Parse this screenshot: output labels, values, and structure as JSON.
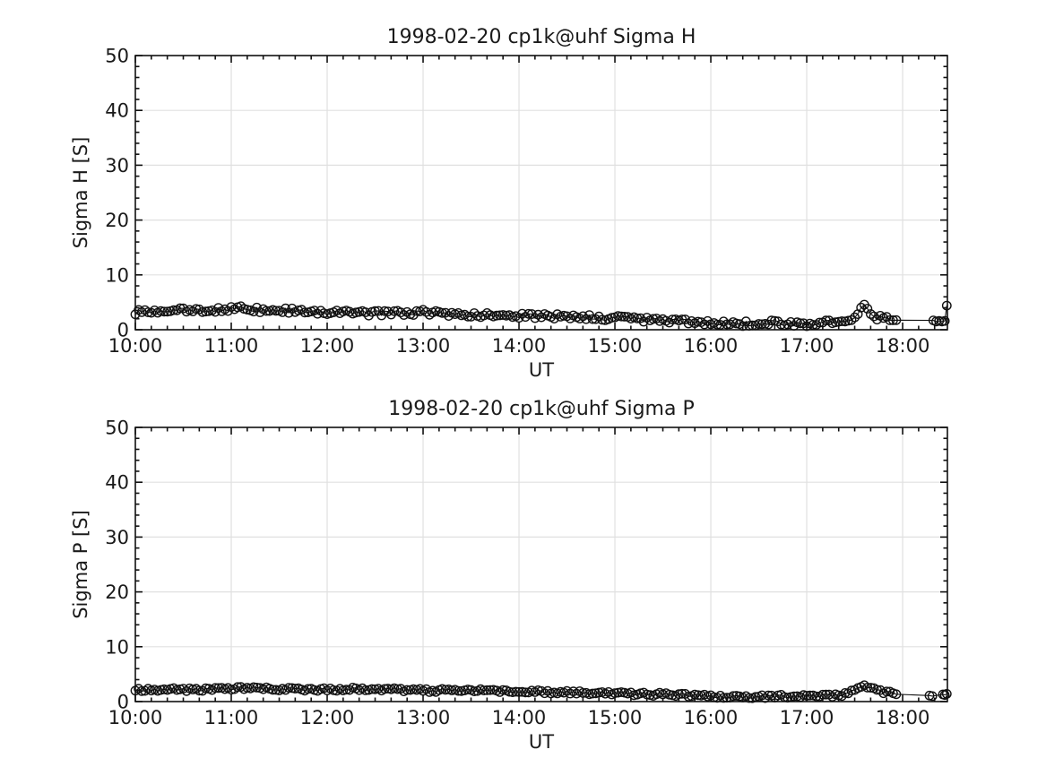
{
  "figure": {
    "background_color": "#ffffff",
    "text_color": "#1a1a1a",
    "axis_color": "#111111",
    "grid_color": "#e0e0e0"
  },
  "chart_data": [
    {
      "type": "scatter",
      "title": "1998-02-20  cp1k@uhf Sigma H",
      "xlabel": "UT",
      "ylabel": "Sigma H [S]",
      "xlim_hours": [
        10.0,
        18.4667
      ],
      "ylim": [
        0,
        50
      ],
      "xticks_hours": [
        10,
        11,
        12,
        13,
        14,
        15,
        16,
        17,
        18
      ],
      "xtick_labels": [
        "10:00",
        "11:00",
        "12:00",
        "13:00",
        "14:00",
        "15:00",
        "16:00",
        "17:00",
        "18:00"
      ],
      "yticks": [
        0,
        10,
        20,
        30,
        40,
        50
      ],
      "x_minor_step_min": 10,
      "y_minor_step": 2,
      "grid": true,
      "legend": "none",
      "marker": "open-circle",
      "line_style": "solid",
      "series_color": "#111111",
      "sample_interval_min": 2,
      "regular_end_hour": 17.95,
      "gap_hours": [
        17.95,
        18.32
      ],
      "noise_amp": 0.45,
      "noise_seed": 7,
      "trend_anchors_hour_value": [
        [
          10.0,
          3.2
        ],
        [
          10.3,
          3.5
        ],
        [
          10.7,
          3.6
        ],
        [
          11.1,
          3.9
        ],
        [
          11.3,
          3.6
        ],
        [
          11.7,
          3.4
        ],
        [
          12.0,
          3.3
        ],
        [
          12.4,
          3.0
        ],
        [
          12.8,
          3.0
        ],
        [
          13.0,
          3.2
        ],
        [
          13.3,
          2.8
        ],
        [
          13.7,
          2.6
        ],
        [
          14.0,
          2.5
        ],
        [
          14.5,
          2.4
        ],
        [
          15.0,
          2.1
        ],
        [
          15.4,
          1.8
        ],
        [
          15.8,
          1.4
        ],
        [
          16.0,
          1.2
        ],
        [
          16.3,
          1.1
        ],
        [
          16.6,
          1.3
        ],
        [
          16.9,
          1.0
        ],
        [
          17.1,
          1.2
        ],
        [
          17.35,
          1.4
        ],
        [
          17.5,
          2.3
        ],
        [
          17.58,
          4.5
        ],
        [
          17.65,
          3.2
        ],
        [
          17.72,
          2.3
        ],
        [
          17.8,
          2.1
        ],
        [
          17.95,
          1.8
        ]
      ],
      "tail_points_hour_value": [
        [
          18.32,
          1.7
        ],
        [
          18.35,
          1.5
        ],
        [
          18.38,
          1.6
        ],
        [
          18.41,
          1.5
        ],
        [
          18.44,
          1.6
        ],
        [
          18.46,
          4.4
        ]
      ]
    },
    {
      "type": "scatter",
      "title": "1998-02-20  cp1k@uhf Sigma P",
      "xlabel": "UT",
      "ylabel": "Sigma P [S]",
      "xlim_hours": [
        10.0,
        18.4667
      ],
      "ylim": [
        0,
        50
      ],
      "xticks_hours": [
        10,
        11,
        12,
        13,
        14,
        15,
        16,
        17,
        18
      ],
      "xtick_labels": [
        "10:00",
        "11:00",
        "12:00",
        "13:00",
        "14:00",
        "15:00",
        "16:00",
        "17:00",
        "18:00"
      ],
      "yticks": [
        0,
        10,
        20,
        30,
        40,
        50
      ],
      "x_minor_step_min": 10,
      "y_minor_step": 2,
      "grid": true,
      "legend": "none",
      "marker": "open-circle",
      "line_style": "solid",
      "series_color": "#111111",
      "sample_interval_min": 2,
      "regular_end_hour": 17.95,
      "gap_hours": [
        17.95,
        18.28
      ],
      "noise_amp": 0.3,
      "noise_seed": 13,
      "trend_anchors_hour_value": [
        [
          10.0,
          2.2
        ],
        [
          10.5,
          2.2
        ],
        [
          11.0,
          2.3
        ],
        [
          11.15,
          2.6
        ],
        [
          11.4,
          2.3
        ],
        [
          12.0,
          2.2
        ],
        [
          12.5,
          2.3
        ],
        [
          13.0,
          2.0
        ],
        [
          13.6,
          2.1
        ],
        [
          14.0,
          1.9
        ],
        [
          14.5,
          1.7
        ],
        [
          15.0,
          1.5
        ],
        [
          15.5,
          1.3
        ],
        [
          16.0,
          1.0
        ],
        [
          16.4,
          0.8
        ],
        [
          16.7,
          1.0
        ],
        [
          17.0,
          0.9
        ],
        [
          17.35,
          1.2
        ],
        [
          17.5,
          2.0
        ],
        [
          17.58,
          3.1
        ],
        [
          17.65,
          2.4
        ],
        [
          17.75,
          1.9
        ],
        [
          17.85,
          1.7
        ],
        [
          17.95,
          1.5
        ]
      ],
      "tail_points_hour_value": [
        [
          18.28,
          1.1
        ],
        [
          18.31,
          1.0
        ],
        [
          18.42,
          1.3
        ],
        [
          18.44,
          1.2
        ],
        [
          18.46,
          1.4
        ]
      ]
    }
  ]
}
